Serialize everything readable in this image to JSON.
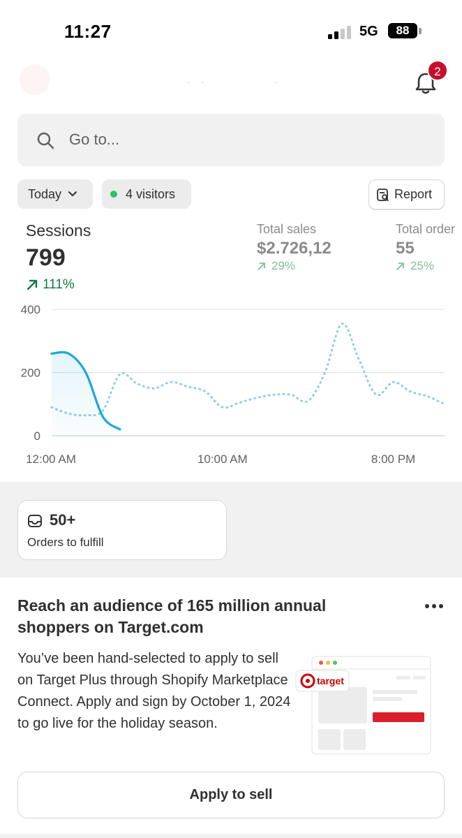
{
  "status_bar": {
    "time": "11:27",
    "network": "5G",
    "battery": "88"
  },
  "header": {
    "notification_count": "2"
  },
  "search": {
    "placeholder": "Go to..."
  },
  "filters": {
    "date": "Today",
    "visitors": "4 visitors",
    "report": "Report"
  },
  "metrics": {
    "sessions": {
      "label": "Sessions",
      "value": "799",
      "change": "111%"
    },
    "total_sales": {
      "label": "Total sales",
      "value": "$2.726,12",
      "change": "29%"
    },
    "total_orders": {
      "label": "Total order",
      "value": "55",
      "change": "25%"
    }
  },
  "colors": {
    "accent_line": "#1ea7d8",
    "comparison_line": "#8fcde6",
    "positive": "#0f7b45",
    "badge": "#c4102d"
  },
  "chart_data": {
    "type": "line",
    "y_ticks": [
      "400",
      "200",
      "0"
    ],
    "x_labels": [
      "12:00 AM",
      "10:00 AM",
      "8:00 PM"
    ],
    "ylim": [
      0,
      400
    ],
    "grid": true,
    "series": [
      {
        "style": "solid",
        "x": [
          0,
          1,
          2,
          3,
          4
        ],
        "y": [
          260,
          260,
          200,
          60,
          20
        ]
      },
      {
        "style": "dotted",
        "x": [
          0,
          1,
          2,
          3,
          4,
          5,
          6,
          7,
          8,
          9,
          10,
          11,
          12,
          13,
          14,
          15,
          16,
          17,
          18,
          19,
          20,
          21,
          22,
          23
        ],
        "y": [
          90,
          70,
          65,
          80,
          195,
          165,
          150,
          170,
          155,
          140,
          90,
          105,
          120,
          130,
          130,
          110,
          200,
          355,
          240,
          130,
          170,
          140,
          125,
          100
        ]
      }
    ]
  },
  "fulfill": {
    "value": "50+",
    "label": "Orders to fulfill"
  },
  "promo": {
    "title": "Reach an audience of 165 million annual shoppers on Target.com",
    "body": "You’ve been hand-selected to apply to sell on Target Plus through Shopify Marketplace Connect. Apply and sign by October 1, 2024 to go live for the holiday season.",
    "brand": "target",
    "button": "Apply to sell"
  }
}
